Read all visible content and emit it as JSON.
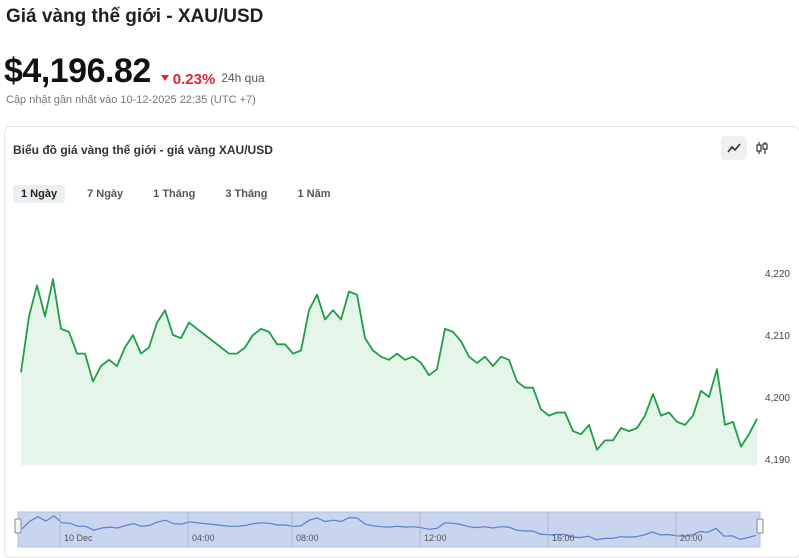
{
  "header": {
    "title": "Giá vàng thế giới - XAU/USD",
    "price": "$4,196.82",
    "change": "0.23%",
    "period": "24h qua",
    "updated": "Cập nhật gần nhất vào 10-12-2025 22:35 (UTC +7)"
  },
  "card": {
    "title": "Biểu đồ giá vàng thế giới - giá vàng XAU/USD",
    "chart_types": [
      "line-chart-icon",
      "candlestick-icon"
    ],
    "active_chart_type": "line"
  },
  "tabs": [
    {
      "label": "1 Ngày",
      "active": true
    },
    {
      "label": "7 Ngày",
      "active": false
    },
    {
      "label": "1 Tháng",
      "active": false
    },
    {
      "label": "3 Tháng",
      "active": false
    },
    {
      "label": "1 Năm",
      "active": false
    }
  ],
  "colors": {
    "line": "#1e9e47",
    "fill": "#e6f5ea",
    "negative": "#e0243a",
    "navigator_fill": "#c9d4ef",
    "navigator_line": "#5a7fcf"
  },
  "chart_data": {
    "type": "area",
    "title": "",
    "xlabel": "",
    "ylabel": "",
    "ylim": [
      4188.5,
      4223
    ],
    "y_ticks": [
      "4,220",
      "4,210",
      "4,200",
      "4,190"
    ],
    "y_tick_values": [
      4220,
      4210,
      4200,
      4190
    ],
    "navigator_ticks": [
      "10 Dec",
      "04:00",
      "08:00",
      "12:00",
      "16:00",
      "20:00"
    ],
    "series": [
      {
        "values": [
          4204,
          4213,
          4218,
          4213,
          4219,
          4211,
          4210.5,
          4207,
          4207,
          4202.5,
          4205,
          4206,
          4205,
          4208,
          4210,
          4207,
          4208,
          4212,
          4214,
          4210,
          4209.5,
          4212,
          4211,
          4210,
          4209,
          4208,
          4207,
          4207,
          4208,
          4210,
          4211,
          4210.5,
          4208.5,
          4208.5,
          4207,
          4207.5,
          4214,
          4216.5,
          4212.5,
          4214,
          4212.5,
          4217,
          4216.5,
          4209.5,
          4207.5,
          4206.5,
          4206,
          4207,
          4206,
          4206.5,
          4205.5,
          4203.5,
          4204.5,
          4211,
          4210.5,
          4209,
          4206.5,
          4205.5,
          4206.5,
          4205,
          4206.5,
          4206,
          4202.5,
          4201.5,
          4201.5,
          4198,
          4197,
          4197.5,
          4197.5,
          4194.5,
          4194,
          4195.5,
          4191.5,
          4193,
          4193,
          4195,
          4194.5,
          4195,
          4197,
          4200.5,
          4197,
          4197.5,
          4196,
          4195.5,
          4197,
          4201,
          4200,
          4204.5,
          4195.5,
          4196,
          4192,
          4194,
          4196.5
        ]
      }
    ]
  }
}
